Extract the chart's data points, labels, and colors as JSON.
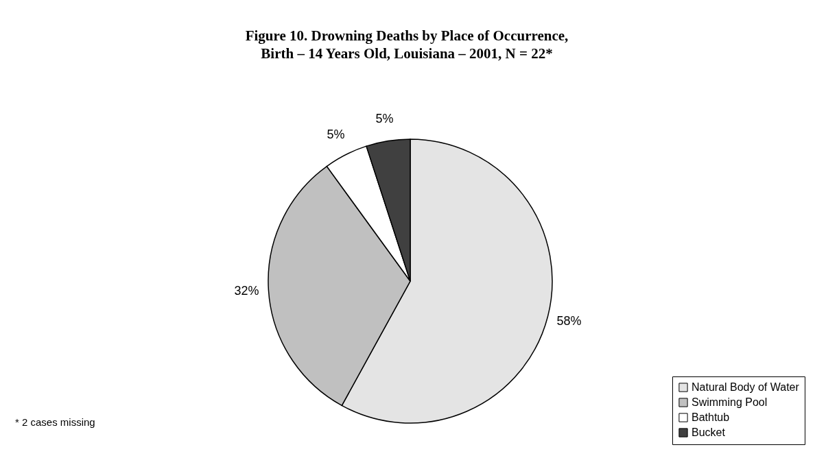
{
  "chart_data": {
    "type": "pie",
    "title": "Figure 10. Drowning Deaths by Place of Occurrence,\nBirth – 14 Years Old, Louisiana – 2001, N = 22*",
    "categories": [
      "Natural Body of Water",
      "Swimming Pool",
      "Bathtub",
      "Bucket"
    ],
    "values": [
      58,
      32,
      5,
      5
    ],
    "value_labels": [
      "58%",
      "32%",
      "5%",
      "5%"
    ],
    "colors": [
      "#e4e4e4",
      "#c0c0c0",
      "#ffffff",
      "#404040"
    ],
    "legend": "bottom right",
    "annotations": [
      "*  2 cases missing"
    ]
  }
}
